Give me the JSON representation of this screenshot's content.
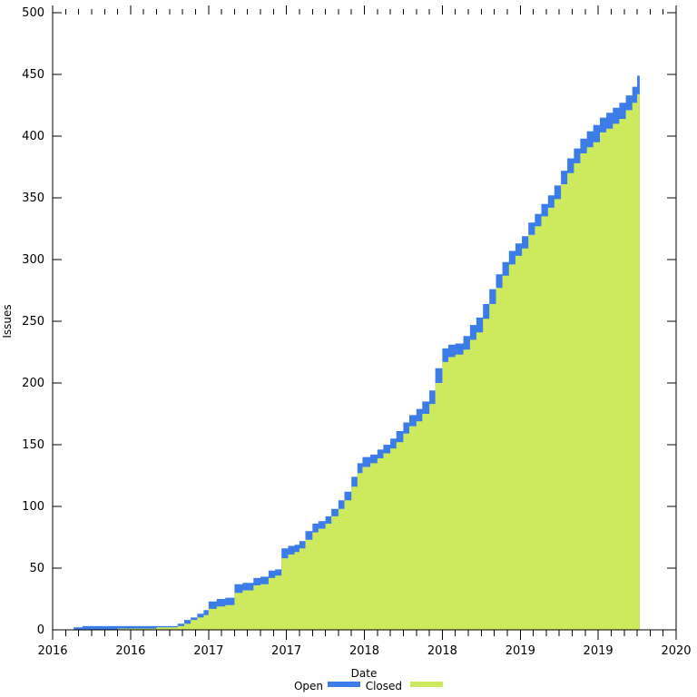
{
  "chart_data": {
    "type": "area",
    "stacked": true,
    "title": "",
    "xlabel": "Date",
    "ylabel": "Issues",
    "grid": false,
    "legend_position": "bottom-center",
    "ylim": [
      0,
      500
    ],
    "y_ticks": [
      0,
      50,
      100,
      150,
      200,
      250,
      300,
      350,
      400,
      450,
      500
    ],
    "x_range": [
      "2016-01-01",
      "2020-01-01"
    ],
    "x_major_tick_interval_months": 6,
    "x_minor_tick_interval_months": 1,
    "x_tick_labels": [
      "2016",
      "2016",
      "2017",
      "2017",
      "2018",
      "2018",
      "2019",
      "2019",
      "2020"
    ],
    "x": [
      "2016-02-20",
      "2016-03-10",
      "2016-06-01",
      "2016-09-01",
      "2016-10-20",
      "2016-11-05",
      "2016-11-20",
      "2016-12-05",
      "2016-12-20",
      "2017-01-01",
      "2017-01-20",
      "2017-02-10",
      "2017-03-01",
      "2017-03-20",
      "2017-04-15",
      "2017-05-01",
      "2017-05-20",
      "2017-06-05",
      "2017-06-20",
      "2017-07-05",
      "2017-07-20",
      "2017-08-01",
      "2017-08-15",
      "2017-09-01",
      "2017-09-15",
      "2017-10-01",
      "2017-10-15",
      "2017-11-01",
      "2017-11-15",
      "2017-12-01",
      "2017-12-15",
      "2017-12-27",
      "2018-01-15",
      "2018-02-01",
      "2018-02-15",
      "2018-03-01",
      "2018-03-15",
      "2018-04-01",
      "2018-04-15",
      "2018-05-01",
      "2018-05-15",
      "2018-06-01",
      "2018-06-15",
      "2018-07-01",
      "2018-07-15",
      "2018-08-01",
      "2018-08-20",
      "2018-09-05",
      "2018-09-20",
      "2018-10-05",
      "2018-10-20",
      "2018-11-05",
      "2018-11-20",
      "2018-12-05",
      "2018-12-20",
      "2019-01-05",
      "2019-01-20",
      "2019-02-05",
      "2019-02-20",
      "2019-03-05",
      "2019-03-20",
      "2019-04-05",
      "2019-04-20",
      "2019-05-05",
      "2019-05-20",
      "2019-06-05",
      "2019-06-20",
      "2019-07-05",
      "2019-07-20",
      "2019-08-05",
      "2019-08-20",
      "2019-09-05",
      "2019-09-20",
      "2019-10-01",
      "2019-10-07"
    ],
    "series": [
      {
        "name": "Open",
        "color": "#3B7CE9",
        "values": [
          2,
          3,
          2,
          1,
          2,
          3,
          2,
          3,
          4,
          6,
          6,
          6,
          7,
          6,
          6,
          6,
          6,
          5,
          8,
          7,
          6,
          6,
          7,
          7,
          6,
          6,
          6,
          7,
          7,
          8,
          8,
          8,
          7,
          7,
          7,
          8,
          9,
          9,
          9,
          10,
          10,
          11,
          12,
          11,
          10,
          9,
          11,
          12,
          12,
          12,
          12,
          11,
          11,
          11,
          10,
          10,
          10,
          10,
          10,
          10,
          11,
          11,
          12,
          12,
          12,
          13,
          14,
          12,
          13,
          13,
          13,
          12,
          13,
          15,
          21
        ]
      },
      {
        "name": "Closed",
        "color": "#CDE95E",
        "values": [
          0,
          0,
          1,
          2,
          3,
          5,
          8,
          10,
          12,
          17,
          19,
          20,
          30,
          32,
          36,
          37,
          42,
          44,
          58,
          61,
          63,
          66,
          73,
          79,
          82,
          86,
          92,
          98,
          105,
          116,
          127,
          132,
          135,
          139,
          143,
          147,
          152,
          159,
          165,
          169,
          175,
          183,
          200,
          217,
          221,
          223,
          227,
          235,
          241,
          252,
          264,
          277,
          287,
          296,
          303,
          309,
          320,
          327,
          335,
          342,
          349,
          361,
          370,
          378,
          386,
          391,
          395,
          403,
          406,
          410,
          414,
          421,
          427,
          434,
          439
        ]
      }
    ],
    "series_order_bottom_to_top": [
      "Closed",
      "Open"
    ],
    "totals_final": {
      "total_issues": 460,
      "closed_issues": 439,
      "open_issues": 21
    }
  }
}
